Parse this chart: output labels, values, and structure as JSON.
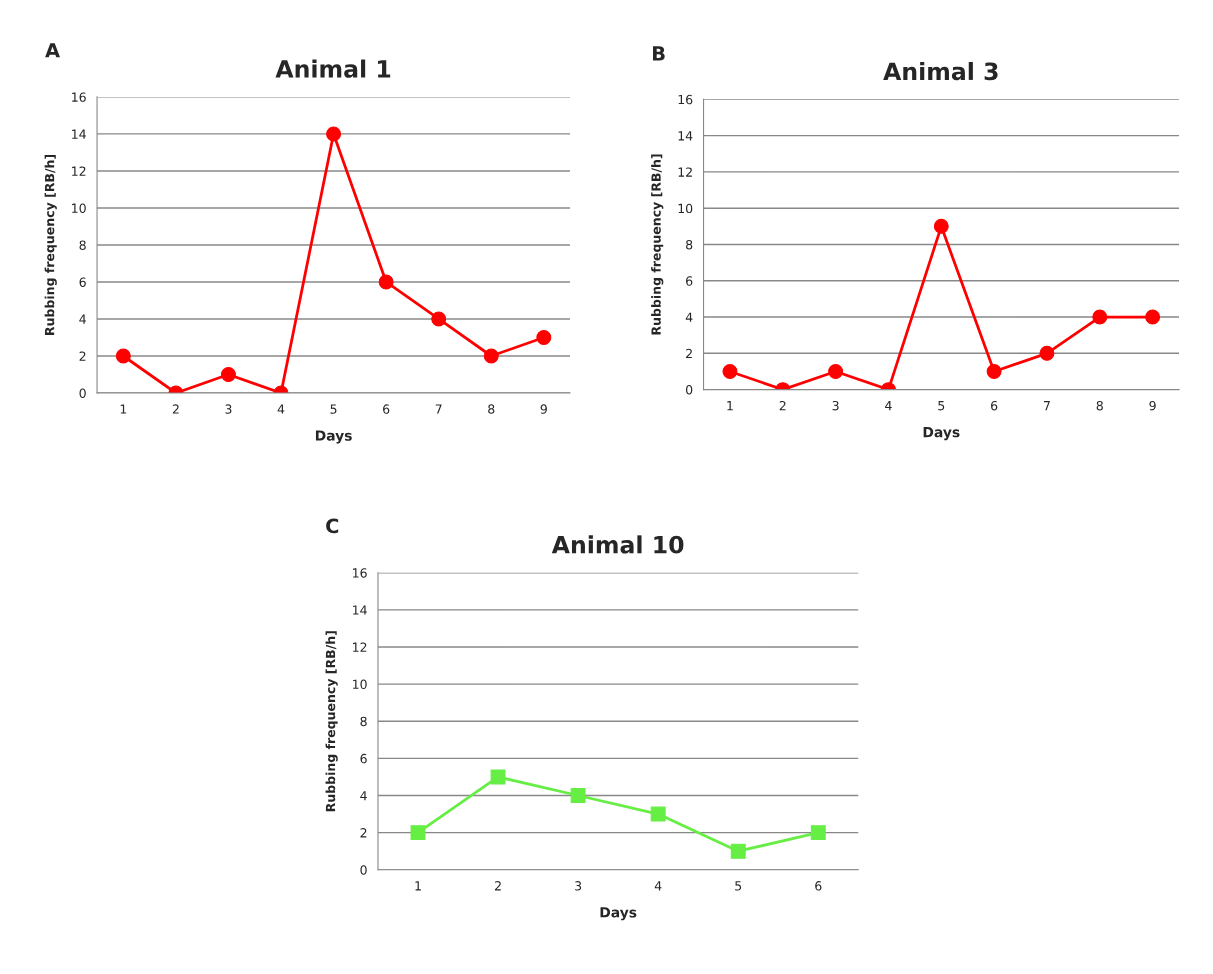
{
  "chart_data": [
    {
      "type": "line",
      "title": "Animal 1",
      "annotations": [
        "A"
      ],
      "xlabel": "Days",
      "ylabel": "Rubbing frequency [RB/h]",
      "categories": [
        "1",
        "2",
        "3",
        "4",
        "5",
        "6",
        "7",
        "8",
        "9"
      ],
      "series": [
        {
          "color": "#ff0000",
          "values": [
            2,
            0,
            1,
            0,
            14,
            6,
            4,
            2,
            3
          ]
        }
      ],
      "ylim": [
        0,
        16
      ],
      "yticks": [
        0,
        2,
        4,
        6,
        8,
        10,
        12,
        14,
        16
      ],
      "grid": "y",
      "marker": "circle"
    },
    {
      "type": "line",
      "title": "Animal 3",
      "annotations": [
        "B"
      ],
      "xlabel": "Days",
      "ylabel": "Rubbing frequency [RB/h]",
      "categories": [
        "1",
        "2",
        "3",
        "4",
        "5",
        "6",
        "7",
        "8",
        "9"
      ],
      "series": [
        {
          "color": "#ff0000",
          "values": [
            1,
            0,
            1,
            0,
            9,
            1,
            2,
            4,
            4
          ]
        }
      ],
      "ylim": [
        0,
        16
      ],
      "yticks": [
        0,
        2,
        4,
        6,
        8,
        10,
        12,
        14,
        16
      ],
      "grid": "y",
      "marker": "circle"
    },
    {
      "type": "line",
      "title": "Animal 10",
      "annotations": [
        "C"
      ],
      "xlabel": "Days",
      "ylabel": "Rubbing frequency [RB/h]",
      "categories": [
        "1",
        "2",
        "3",
        "4",
        "5",
        "6"
      ],
      "series": [
        {
          "color": "#66ee44",
          "values": [
            2,
            5,
            4,
            3,
            1,
            2
          ]
        }
      ],
      "ylim": [
        0,
        16
      ],
      "yticks": [
        0,
        2,
        4,
        6,
        8,
        10,
        12,
        14,
        16
      ],
      "grid": "y",
      "marker": "square"
    }
  ]
}
